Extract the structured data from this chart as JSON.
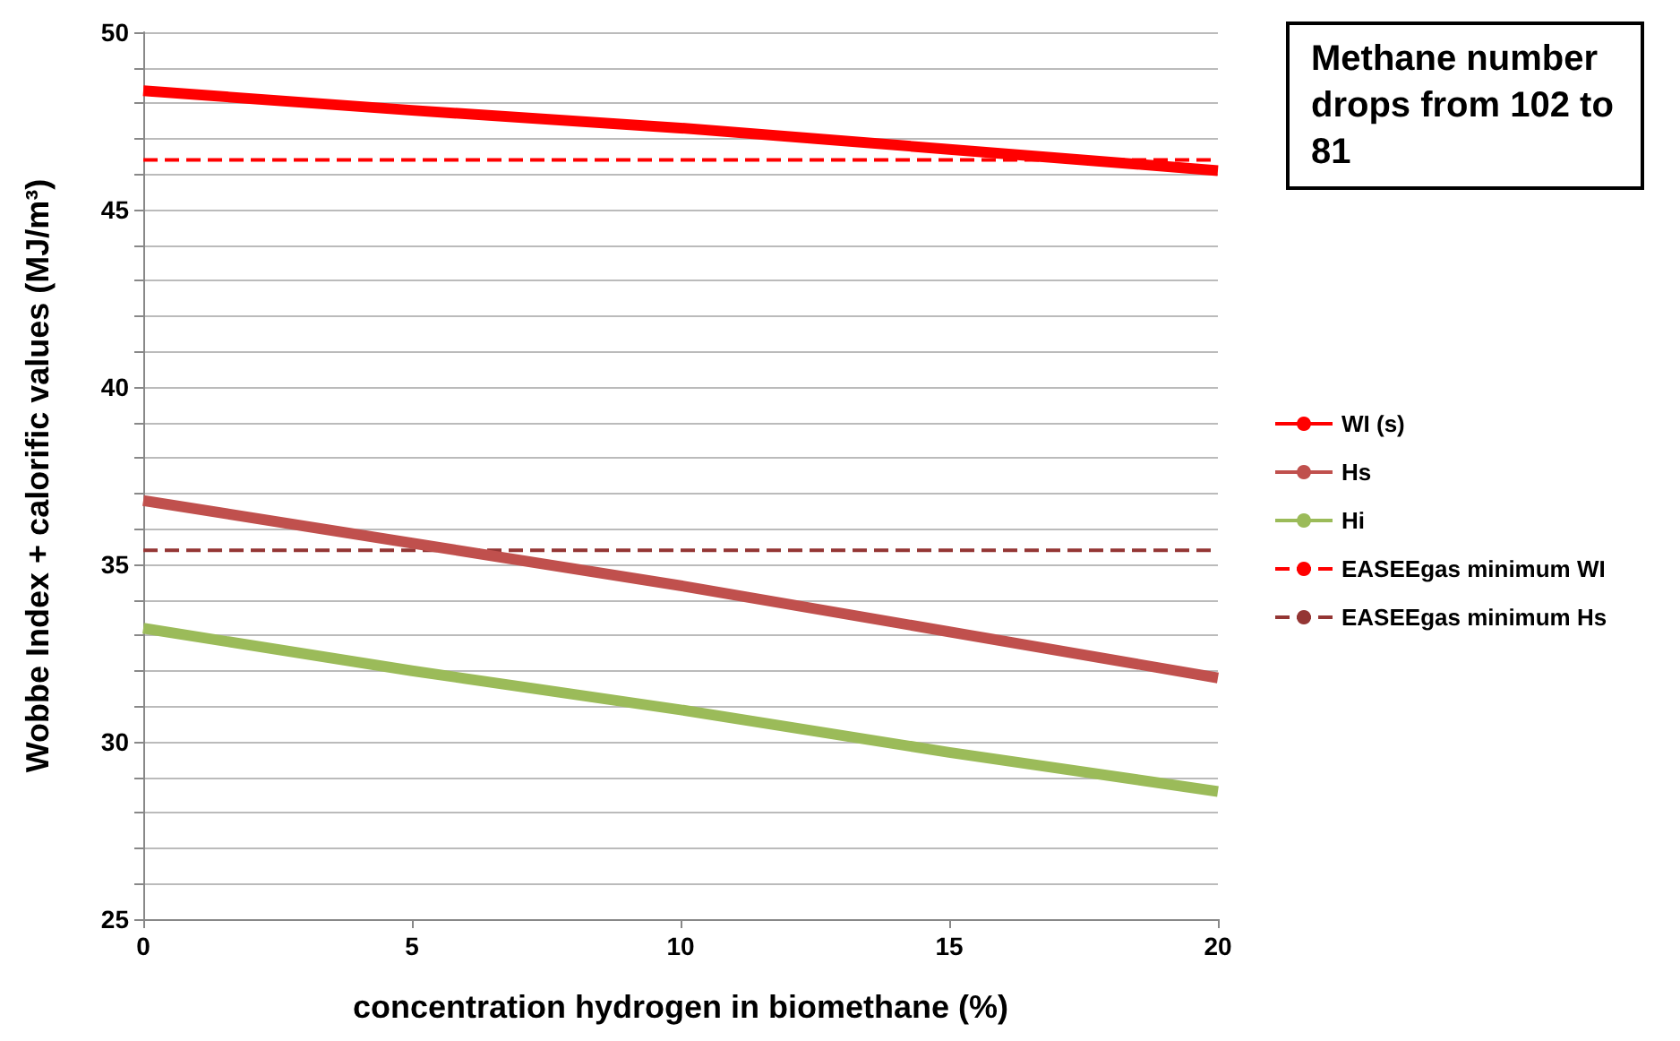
{
  "chart_data": {
    "type": "line",
    "xlabel": "concentration hydrogen in biomethane (%)",
    "ylabel": "Wobbe Index + calorific values (MJ/m³)",
    "x": [
      0,
      5,
      10,
      15,
      20
    ],
    "series": [
      {
        "name": "WI (s)",
        "color": "#ff0000",
        "values": [
          48.35,
          47.8,
          47.3,
          46.7,
          46.1
        ]
      },
      {
        "name": "Hs",
        "color": "#c0504d",
        "values": [
          36.8,
          35.6,
          34.4,
          33.1,
          31.8
        ]
      },
      {
        "name": "Hi",
        "color": "#9bbb59",
        "values": [
          33.2,
          32.0,
          30.9,
          29.7,
          28.6
        ]
      }
    ],
    "ref_lines": [
      {
        "axis": "y",
        "value": 46.4,
        "label": "EASEEgas minimum WI",
        "color": "#ff0000",
        "line_style": "dashed"
      },
      {
        "axis": "y",
        "value": 35.4,
        "label": "EASEEgas minimum Hs",
        "color": "#943634",
        "line_style": "dashed"
      }
    ],
    "annotations": [
      "Methane number drops from 102 to 81"
    ],
    "xlim": [
      0,
      20
    ],
    "xticks": [
      0,
      5,
      10,
      15,
      20
    ],
    "ylim": [
      25,
      50
    ],
    "yticks": [
      25,
      {
        "value": 26,
        "label": null
      },
      {
        "value": 27,
        "label": null
      },
      {
        "value": 28,
        "label": null
      },
      {
        "value": 29,
        "label": null
      },
      30,
      {
        "value": 31,
        "label": null
      },
      {
        "value": 32,
        "label": null
      },
      {
        "value": 33,
        "label": null
      },
      {
        "value": 34,
        "label": null
      },
      35,
      {
        "value": 36,
        "label": null
      },
      {
        "value": 37,
        "label": null
      },
      {
        "value": 38,
        "label": null
      },
      {
        "value": 39,
        "label": null
      },
      40,
      {
        "value": 41,
        "label": null
      },
      {
        "value": 42,
        "label": null
      },
      {
        "value": 43,
        "label": null
      },
      {
        "value": 44,
        "label": null
      },
      45,
      {
        "value": 46,
        "label": null
      },
      {
        "value": 47,
        "label": null
      },
      {
        "value": 48,
        "label": null
      },
      {
        "value": 49,
        "label": null
      },
      50
    ],
    "grid": "y",
    "legend": "right",
    "marker": "none",
    "line_style": "solid"
  }
}
